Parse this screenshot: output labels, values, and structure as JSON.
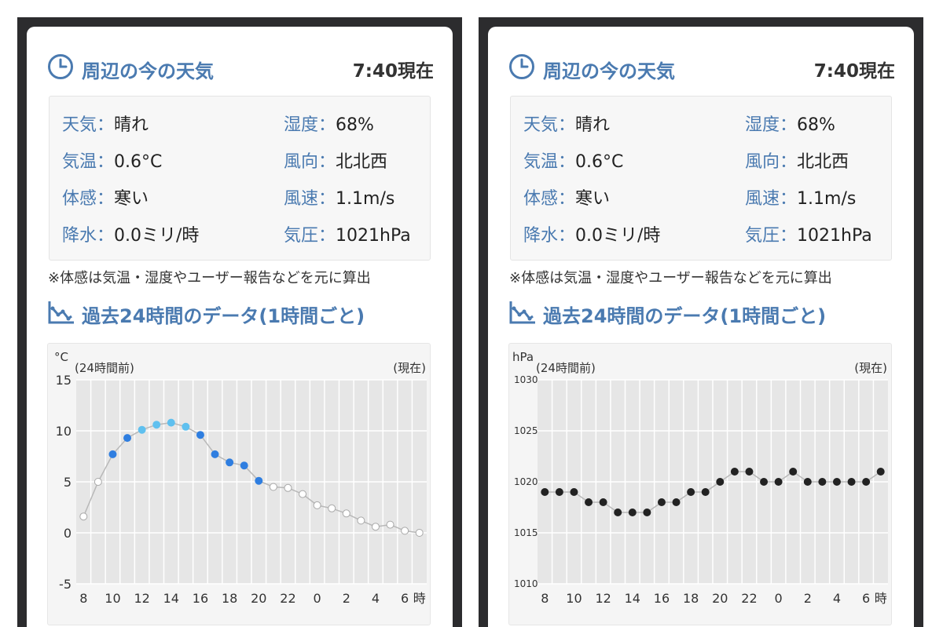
{
  "panels": [
    {
      "header": {
        "title": "周辺の今の天気",
        "time": "7:40現在"
      },
      "weather": {
        "rows": [
          {
            "label": "天気",
            "value": "晴れ"
          },
          {
            "label": "湿度",
            "value": "68%"
          },
          {
            "label": "気温",
            "value": "0.6°C"
          },
          {
            "label": "風向",
            "value": "北北西"
          },
          {
            "label": "体感",
            "value": "寒い"
          },
          {
            "label": "風速",
            "value": "1.1m/s"
          },
          {
            "label": "降水",
            "value": "0.0ミリ/時"
          },
          {
            "label": "気圧",
            "value": "1021hPa"
          }
        ]
      },
      "note": "※体感は気温・湿度やユーザー報告などを元に算出",
      "chart_title": "過去24時間のデータ(1時間ごと)"
    },
    {
      "header": {
        "title": "周辺の今の天気",
        "time": "7:40現在"
      },
      "weather": {
        "rows": [
          {
            "label": "天気",
            "value": "晴れ"
          },
          {
            "label": "湿度",
            "value": "68%"
          },
          {
            "label": "気温",
            "value": "0.6°C"
          },
          {
            "label": "風向",
            "value": "北北西"
          },
          {
            "label": "体感",
            "value": "寒い"
          },
          {
            "label": "風速",
            "value": "1.1m/s"
          },
          {
            "label": "降水",
            "value": "0.0ミリ/時"
          },
          {
            "label": "気圧",
            "value": "1021hPa"
          }
        ]
      },
      "note": "※体感は気温・湿度やユーザー報告などを元に算出",
      "chart_title": "過去24時間のデータ(1時間ごと)"
    }
  ],
  "chart_data": [
    {
      "type": "line",
      "unit": "°C",
      "start_label": "(24時間前)",
      "end_label": "(現在)",
      "hour_label": "時",
      "x": [
        8,
        9,
        10,
        11,
        12,
        13,
        14,
        15,
        16,
        17,
        18,
        19,
        20,
        21,
        22,
        23,
        0,
        1,
        2,
        3,
        4,
        5,
        6,
        7
      ],
      "x_tick_labels": [
        "8",
        "10",
        "12",
        "14",
        "16",
        "18",
        "20",
        "22",
        "0",
        "2",
        "4",
        "6"
      ],
      "y_ticks": [
        15,
        10,
        5,
        0,
        -5
      ],
      "ylim": [
        -5,
        15
      ],
      "values": [
        1.6,
        5.0,
        7.7,
        9.3,
        10.1,
        10.6,
        10.8,
        10.4,
        9.6,
        7.7,
        6.9,
        6.6,
        5.1,
        4.5,
        4.4,
        3.8,
        2.7,
        2.4,
        1.9,
        1.2,
        0.6,
        0.8,
        0.2,
        0.0
      ],
      "point_colors": [
        "#ffffff",
        "#ffffff",
        "#2f7ee0",
        "#2f7ee0",
        "#5fc0ef",
        "#5fc0ef",
        "#5fc0ef",
        "#5fc0ef",
        "#2f7ee0",
        "#2f7ee0",
        "#2f7ee0",
        "#2f7ee0",
        "#2f7ee0",
        "#ffffff",
        "#ffffff",
        "#ffffff",
        "#ffffff",
        "#ffffff",
        "#ffffff",
        "#ffffff",
        "#ffffff",
        "#ffffff",
        "#ffffff",
        "#ffffff"
      ],
      "line_color": "#b8b8b8"
    },
    {
      "type": "line",
      "unit": "hPa",
      "start_label": "(24時間前)",
      "end_label": "(現在)",
      "hour_label": "時",
      "x": [
        8,
        9,
        10,
        11,
        12,
        13,
        14,
        15,
        16,
        17,
        18,
        19,
        20,
        21,
        22,
        23,
        0,
        1,
        2,
        3,
        4,
        5,
        6,
        7
      ],
      "x_tick_labels": [
        "8",
        "10",
        "12",
        "14",
        "16",
        "18",
        "20",
        "22",
        "0",
        "2",
        "4",
        "6"
      ],
      "y_ticks": [
        1030,
        1025,
        1020,
        1015,
        1010
      ],
      "ylim": [
        1010,
        1030
      ],
      "values": [
        1019,
        1019,
        1019,
        1018,
        1018,
        1017,
        1017,
        1017,
        1018,
        1018,
        1019,
        1019,
        1020,
        1021,
        1021,
        1020,
        1020,
        1021,
        1020,
        1020,
        1020,
        1020,
        1020,
        1021
      ],
      "point_colors": [
        "#222222"
      ],
      "line_color": "#b8b8b8"
    }
  ],
  "colors": {
    "accent": "#4a7ab0",
    "text": "#222222"
  },
  "icons": {
    "header": "clock-icon",
    "chart": "trend-chart-icon"
  }
}
